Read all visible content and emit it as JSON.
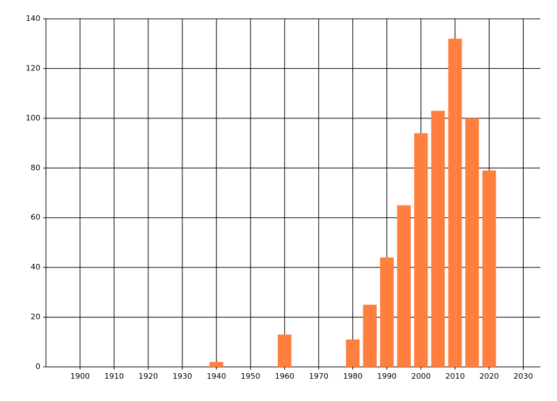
{
  "chart_data": {
    "type": "bar",
    "x": [
      1940,
      1960,
      1980,
      1985,
      1990,
      1995,
      2000,
      2005,
      2010,
      2015,
      2020
    ],
    "values": [
      2,
      13,
      11,
      25,
      44,
      65,
      94,
      103,
      132,
      100,
      79
    ],
    "color": "#ff7f3f",
    "xlim": [
      1890,
      2035
    ],
    "xticks": [
      1900,
      1910,
      1920,
      1930,
      1940,
      1950,
      1960,
      1970,
      1980,
      1990,
      2000,
      2010,
      2020,
      2030
    ],
    "ylim": [
      0,
      140
    ],
    "yticks": [
      0,
      20,
      40,
      60,
      80,
      100,
      120,
      140
    ],
    "grid": true
  }
}
